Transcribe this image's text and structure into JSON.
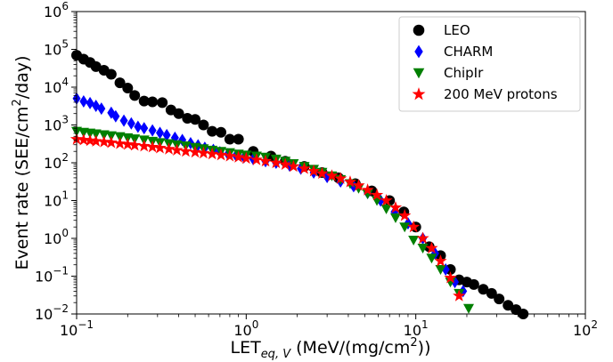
{
  "chart_data": {
    "type": "scatter",
    "xscale": "log",
    "yscale": "log",
    "xlim": [
      0.1,
      100
    ],
    "ylim": [
      0.01,
      1000000
    ],
    "grid": false,
    "legend_position": "top-right",
    "xlabel": {
      "main": "LET",
      "sub": "eq, V",
      "rest_pre": " (MeV/(mg/cm",
      "sup": "2",
      "rest_post": "))"
    },
    "ylabel": {
      "pre": "Event rate (SEE/cm",
      "sup": "2",
      "post": "/day)"
    },
    "x_ticks": [
      {
        "value": 0.1,
        "base": "10",
        "exp": "−1"
      },
      {
        "value": 1,
        "base": "10",
        "exp": "0"
      },
      {
        "value": 10,
        "base": "10",
        "exp": "1"
      },
      {
        "value": 100,
        "base": "10",
        "exp": "2"
      }
    ],
    "y_ticks": [
      {
        "value": 0.01,
        "base": "10",
        "exp": "−2"
      },
      {
        "value": 0.1,
        "base": "10",
        "exp": "−1"
      },
      {
        "value": 1,
        "base": "10",
        "exp": "0"
      },
      {
        "value": 10,
        "base": "10",
        "exp": "1"
      },
      {
        "value": 100,
        "base": "10",
        "exp": "2"
      },
      {
        "value": 1000,
        "base": "10",
        "exp": "3"
      },
      {
        "value": 10000,
        "base": "10",
        "exp": "4"
      },
      {
        "value": 100000,
        "base": "10",
        "exp": "5"
      },
      {
        "value": 1000000,
        "base": "10",
        "exp": "6"
      }
    ],
    "series": [
      {
        "name": "LEO",
        "marker": "circle",
        "color": "#000000",
        "points": [
          [
            0.1,
            70000
          ],
          [
            0.11,
            55000
          ],
          [
            0.12,
            45000
          ],
          [
            0.13,
            35000
          ],
          [
            0.145,
            28000
          ],
          [
            0.16,
            22000
          ],
          [
            0.18,
            13000
          ],
          [
            0.2,
            9500
          ],
          [
            0.22,
            6000
          ],
          [
            0.25,
            4300
          ],
          [
            0.28,
            4100
          ],
          [
            0.32,
            3900
          ],
          [
            0.36,
            2500
          ],
          [
            0.4,
            2000
          ],
          [
            0.45,
            1500
          ],
          [
            0.5,
            1400
          ],
          [
            0.56,
            1000
          ],
          [
            0.63,
            680
          ],
          [
            0.71,
            640
          ],
          [
            0.8,
            420
          ],
          [
            0.9,
            420
          ],
          [
            1.1,
            200
          ],
          [
            1.4,
            150
          ],
          [
            1.7,
            110
          ],
          [
            2.2,
            80
          ],
          [
            2.8,
            55
          ],
          [
            3.5,
            40
          ],
          [
            4.4,
            28
          ],
          [
            5.5,
            18
          ],
          [
            7,
            10
          ],
          [
            8.5,
            5
          ],
          [
            10,
            2
          ],
          [
            12,
            0.6
          ],
          [
            14,
            0.35
          ],
          [
            16,
            0.15
          ],
          [
            18,
            0.08
          ],
          [
            20,
            0.07
          ],
          [
            22,
            0.06
          ],
          [
            25,
            0.045
          ],
          [
            28,
            0.035
          ],
          [
            31,
            0.025
          ],
          [
            35,
            0.017
          ],
          [
            39,
            0.013
          ],
          [
            43,
            0.01
          ]
        ]
      },
      {
        "name": "CHARM",
        "marker": "diamond",
        "color": "#0000ff",
        "points": [
          [
            0.1,
            5000
          ],
          [
            0.11,
            4200
          ],
          [
            0.12,
            3800
          ],
          [
            0.13,
            3200
          ],
          [
            0.14,
            2700
          ],
          [
            0.16,
            2100
          ],
          [
            0.17,
            1700
          ],
          [
            0.19,
            1300
          ],
          [
            0.21,
            1100
          ],
          [
            0.23,
            900
          ],
          [
            0.25,
            820
          ],
          [
            0.28,
            720
          ],
          [
            0.31,
            620
          ],
          [
            0.34,
            540
          ],
          [
            0.38,
            460
          ],
          [
            0.42,
            400
          ],
          [
            0.47,
            330
          ],
          [
            0.52,
            290
          ],
          [
            0.57,
            250
          ],
          [
            0.64,
            220
          ],
          [
            0.7,
            190
          ],
          [
            0.78,
            170
          ],
          [
            0.87,
            155
          ],
          [
            0.97,
            140
          ],
          [
            1.1,
            125
          ],
          [
            1.3,
            110
          ],
          [
            1.5,
            100
          ],
          [
            1.8,
            85
          ],
          [
            2.1,
            70
          ],
          [
            2.5,
            55
          ],
          [
            3,
            42
          ],
          [
            3.6,
            32
          ],
          [
            4.3,
            24
          ],
          [
            5.2,
            16
          ],
          [
            6.2,
            10
          ],
          [
            7.5,
            5
          ],
          [
            9,
            2.5
          ],
          [
            11,
            1
          ],
          [
            13,
            0.4
          ],
          [
            15,
            0.15
          ],
          [
            17,
            0.07
          ],
          [
            19,
            0.04
          ]
        ]
      },
      {
        "name": "ChipIr",
        "marker": "triangle-down",
        "color": "#007f00",
        "points": [
          [
            0.1,
            680
          ],
          [
            0.11,
            640
          ],
          [
            0.12,
            610
          ],
          [
            0.13,
            580
          ],
          [
            0.145,
            550
          ],
          [
            0.16,
            520
          ],
          [
            0.18,
            490
          ],
          [
            0.2,
            460
          ],
          [
            0.22,
            430
          ],
          [
            0.25,
            400
          ],
          [
            0.28,
            370
          ],
          [
            0.31,
            340
          ],
          [
            0.35,
            320
          ],
          [
            0.39,
            300
          ],
          [
            0.44,
            280
          ],
          [
            0.5,
            255
          ],
          [
            0.56,
            235
          ],
          [
            0.63,
            215
          ],
          [
            0.71,
            200
          ],
          [
            0.8,
            185
          ],
          [
            0.9,
            170
          ],
          [
            1.0,
            160
          ],
          [
            1.15,
            150
          ],
          [
            1.3,
            140
          ],
          [
            1.5,
            125
          ],
          [
            1.7,
            110
          ],
          [
            1.9,
            95
          ],
          [
            2.2,
            80
          ],
          [
            2.5,
            67
          ],
          [
            2.8,
            56
          ],
          [
            3.2,
            45
          ],
          [
            3.6,
            36
          ],
          [
            4.1,
            28
          ],
          [
            4.6,
            21
          ],
          [
            5.2,
            15
          ],
          [
            5.9,
            10
          ],
          [
            6.7,
            6
          ],
          [
            7.6,
            3.5
          ],
          [
            8.6,
            2
          ],
          [
            9.7,
            0.9
          ],
          [
            11,
            0.55
          ],
          [
            12.4,
            0.3
          ],
          [
            14,
            0.15
          ],
          [
            16,
            0.07
          ],
          [
            18,
            0.035
          ],
          [
            20.5,
            0.014
          ]
        ]
      },
      {
        "name": "200 MeV protons",
        "marker": "star",
        "color": "#ff0000",
        "points": [
          [
            0.1,
            420
          ],
          [
            0.11,
            400
          ],
          [
            0.12,
            385
          ],
          [
            0.13,
            370
          ],
          [
            0.145,
            355
          ],
          [
            0.16,
            340
          ],
          [
            0.18,
            320
          ],
          [
            0.2,
            305
          ],
          [
            0.22,
            290
          ],
          [
            0.25,
            275
          ],
          [
            0.28,
            260
          ],
          [
            0.31,
            245
          ],
          [
            0.35,
            230
          ],
          [
            0.39,
            215
          ],
          [
            0.44,
            200
          ],
          [
            0.5,
            190
          ],
          [
            0.56,
            180
          ],
          [
            0.63,
            170
          ],
          [
            0.71,
            160
          ],
          [
            0.8,
            150
          ],
          [
            0.9,
            140
          ],
          [
            1.0,
            130
          ],
          [
            1.15,
            120
          ],
          [
            1.3,
            110
          ],
          [
            1.5,
            100
          ],
          [
            1.7,
            90
          ],
          [
            1.9,
            80
          ],
          [
            2.2,
            70
          ],
          [
            2.5,
            60
          ],
          [
            2.8,
            52
          ],
          [
            3.2,
            45
          ],
          [
            3.6,
            38
          ],
          [
            4.1,
            31
          ],
          [
            4.6,
            25
          ],
          [
            5.2,
            19
          ],
          [
            5.9,
            14
          ],
          [
            6.7,
            10
          ],
          [
            7.6,
            6.5
          ],
          [
            8.6,
            4
          ],
          [
            9.7,
            2
          ],
          [
            11,
            1
          ],
          [
            12.4,
            0.55
          ],
          [
            14,
            0.25
          ],
          [
            16,
            0.09
          ],
          [
            18,
            0.03
          ]
        ]
      }
    ]
  }
}
